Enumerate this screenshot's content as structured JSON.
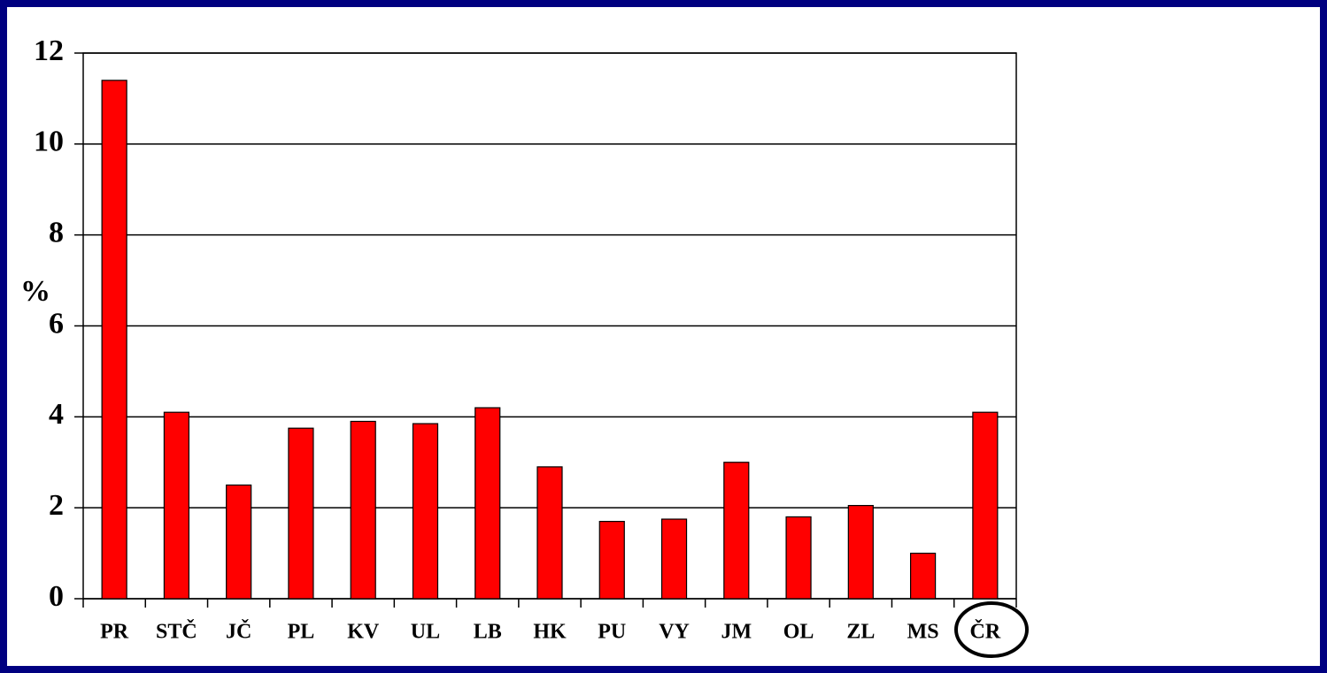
{
  "chart_data": {
    "type": "bar",
    "y_label": "%",
    "categories": [
      "PR",
      "STČ",
      "JČ",
      "PL",
      "KV",
      "UL",
      "LB",
      "HK",
      "PU",
      "VY",
      "JM",
      "OL",
      "ZL",
      "MS",
      "ČR"
    ],
    "values": [
      11.4,
      4.1,
      2.5,
      3.75,
      3.9,
      3.85,
      4.2,
      2.9,
      1.7,
      1.75,
      3.0,
      1.8,
      2.05,
      1.0,
      4.1
    ],
    "color": "#ff0000",
    "ylim": [
      0,
      12
    ],
    "yticks": [
      0,
      2,
      4,
      6,
      8,
      10,
      12
    ],
    "grid": true
  }
}
